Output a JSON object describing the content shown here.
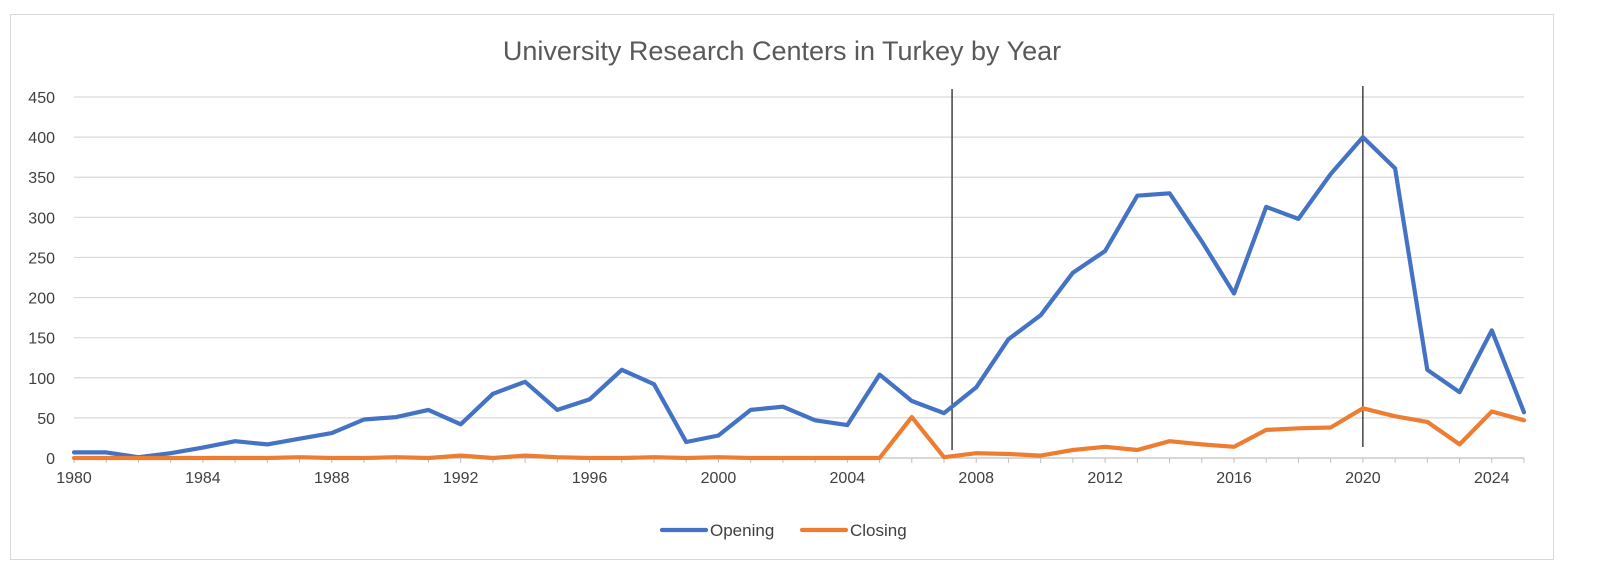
{
  "chart_data": {
    "type": "line",
    "title": "University Research Centers in Turkey by Year",
    "xlabel": "",
    "ylabel": "",
    "ylim": [
      0,
      450
    ],
    "y_ticks": [
      0,
      50,
      100,
      150,
      200,
      250,
      300,
      350,
      400,
      450
    ],
    "x_range": [
      1980,
      2025
    ],
    "x_ticks": [
      "1980",
      "1984",
      "1988",
      "1992",
      "1996",
      "2000",
      "2004",
      "2008",
      "2012",
      "2016",
      "2020",
      "2024"
    ],
    "grid": true,
    "legend": "bottom",
    "vertical_markers": [
      2007.25,
      2020
    ],
    "x": [
      1980,
      1981,
      1982,
      1983,
      1984,
      1985,
      1986,
      1987,
      1988,
      1989,
      1990,
      1991,
      1992,
      1993,
      1994,
      1995,
      1996,
      1997,
      1998,
      1999,
      2000,
      2001,
      2002,
      2003,
      2004,
      2005,
      2006,
      2007,
      2008,
      2009,
      2010,
      2011,
      2012,
      2013,
      2014,
      2015,
      2016,
      2017,
      2018,
      2019,
      2020,
      2021,
      2022,
      2023,
      2024,
      2025
    ],
    "series": [
      {
        "name": "Opening",
        "color": "#4472c4",
        "values": [
          7,
          7,
          1,
          6,
          13,
          21,
          17,
          24,
          31,
          48,
          51,
          60,
          42,
          80,
          95,
          60,
          73,
          110,
          92,
          20,
          28,
          60,
          64,
          47,
          41,
          104,
          71,
          56,
          88,
          148,
          178,
          231,
          258,
          327,
          330,
          270,
          205,
          313,
          298,
          354,
          400,
          361,
          110,
          82,
          159,
          57
        ]
      },
      {
        "name": "Closing",
        "color": "#ed7d31",
        "values": [
          0,
          0,
          0,
          0,
          0,
          0,
          0,
          1,
          0,
          0,
          1,
          0,
          3,
          0,
          3,
          1,
          0,
          0,
          1,
          0,
          1,
          0,
          0,
          0,
          0,
          0,
          51,
          1,
          6,
          5,
          3,
          10,
          14,
          10,
          21,
          17,
          14,
          35,
          37,
          38,
          62,
          52,
          45,
          17,
          58,
          47
        ]
      }
    ]
  }
}
